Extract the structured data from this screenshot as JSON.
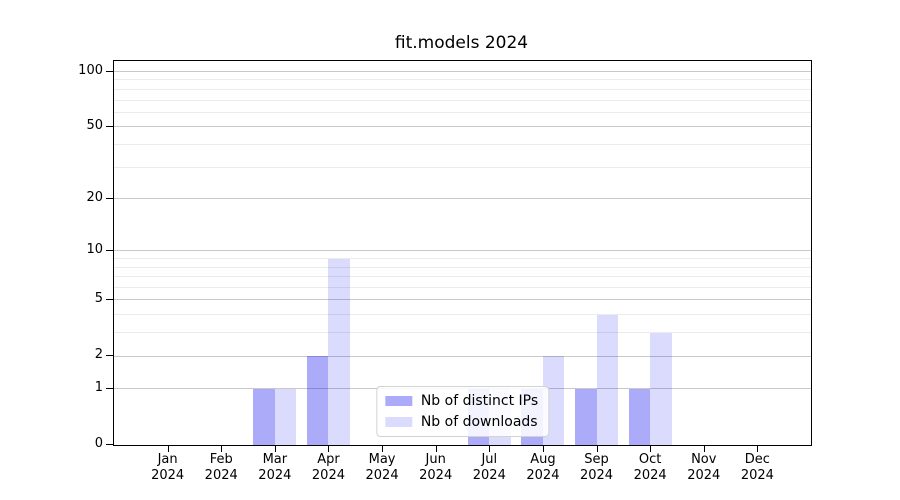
{
  "chart_data": {
    "type": "bar",
    "title": "fit.models 2024",
    "year_label": "2024",
    "categories": [
      "Jan",
      "Feb",
      "Mar",
      "Apr",
      "May",
      "Jun",
      "Jul",
      "Aug",
      "Sep",
      "Oct",
      "Nov",
      "Dec"
    ],
    "series": [
      {
        "name": "Nb of distinct IPs",
        "values": [
          0,
          0,
          1,
          2,
          0,
          0,
          1,
          1,
          1,
          1,
          0,
          0
        ],
        "color": "rgba(0,0,240,0.33)"
      },
      {
        "name": "Nb of downloads",
        "values": [
          0,
          0,
          1,
          9,
          0,
          0,
          1,
          2,
          4,
          3,
          0,
          0
        ],
        "color": "rgba(0,0,240,0.14)"
      }
    ],
    "yscale": "log1p",
    "ylim": [
      0,
      100
    ],
    "yticks_major": [
      0,
      1,
      2,
      5,
      10,
      20,
      50,
      100
    ],
    "yticks_minor": [
      3,
      4,
      6,
      7,
      8,
      9,
      30,
      40,
      60,
      70,
      80,
      90
    ],
    "grid": "horizontal",
    "legend_position": "lower-center",
    "colors": {
      "major_grid": "#c9c9c9",
      "minor_grid": "#ebebeb",
      "spine": "#000000",
      "text": "#000000"
    }
  }
}
